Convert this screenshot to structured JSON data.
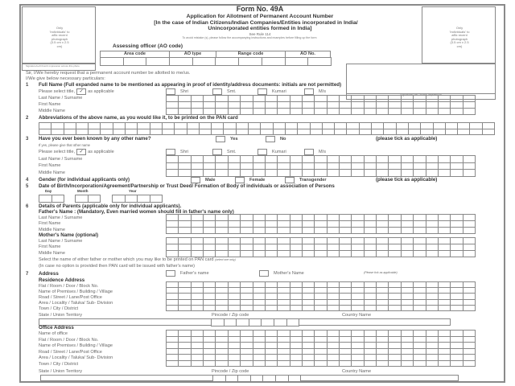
{
  "header": {
    "form_no": "Form No. 49A",
    "title": "Application for Allotment of Permanent Account Number",
    "subtitle1": "[In the case of Indian Citizens/Indian Companies/Entities incorporated in India/",
    "subtitle2": "Unincorporated entities formed in India]",
    "rule": "See Rule 114",
    "note": "To avoid mistake (s), please follow the accompanying instructions and examples before filling up the form"
  },
  "photo_left": {
    "text": "Only 'Individuals' to affix recent photograph (3.5 cm x 2.5 cm)",
    "sign_caption": "Signature/Left thumb impression across this photo"
  },
  "photo_right": {
    "text": "Only 'Individuals' to affix recent photograph (3.5 cm x 2.5 cm)",
    "sign_caption": "Signature/Left Thumb Impression"
  },
  "ao": {
    "label": "Assessing officer (AO code)",
    "columns": [
      "Area code",
      "AO type",
      "Range code",
      "AO No."
    ]
  },
  "intro": {
    "line1": "Sir, I/We hereby request that a permanent account number be allotted to me/us.",
    "line2": "I/We give below necessary particulars:"
  },
  "title_select": {
    "label": "Please select title,",
    "tick": "✓",
    "suffix": "as applicable",
    "options": [
      "Shri",
      "Smt.",
      "Kumari",
      "M/s"
    ]
  },
  "name_fields": [
    "Last Name / Surname",
    "First Name",
    "Middle Name"
  ],
  "q1": {
    "num": "1",
    "text": "Full Name (Full expanded name to be mentioned as appearing in proof of identity/address documents: initials are not permitted)"
  },
  "q2": {
    "num": "2",
    "text": "Abbreviations of the above name, as you would like it, to be printed on the PAN card"
  },
  "q3": {
    "num": "3",
    "text": "Have you ever been known by any other name?",
    "yes": "Yes",
    "no": "No",
    "tick_note": "(please tick as applicable)",
    "if_yes": "If yes, please give that other name"
  },
  "q4": {
    "num": "4",
    "text": "Gender (for individual applicants only)",
    "options": [
      "Male",
      "Female",
      "Transgender"
    ],
    "tick_note": "(please tick as applicable)"
  },
  "q5": {
    "num": "5",
    "text": "Date of Birth/Incorporation/Agreement/Partnership or Trust Deed/ Formation of Body of individuals or association of Persons",
    "day": "Day",
    "month": "Month",
    "year": "Year"
  },
  "q6": {
    "num": "6",
    "text": "Details of Parents (applicable only for individual applicants).",
    "father": "Father's Name : (Mandatory, Even married women should fill in father's name only)",
    "mother": "Mother's Name (optional)",
    "select": "Select the name of either father or mother which you may like to be printed on PAN card",
    "select_note": "(select one only)",
    "in_case": "(In case no option is provided then PAN card will be issued with father's name)",
    "father_opt": "Father's name",
    "mother_opt": "Mother's Name",
    "opt_note": "(Please tick as applicable)"
  },
  "q7": {
    "num": "7",
    "text": "Address",
    "residence": "Residence Address",
    "office": "Office Address",
    "office_name": "Name of office",
    "address_fields": [
      "Flat / Room / Door / Block No.",
      "Name of Premises / Building / Village",
      "Road / Street / Lane/Post Office",
      "Area / Locality / Taluka/ Sub- Division",
      "Town / City / District"
    ],
    "state": "State / Union Territory",
    "pincode": "Pincode / Zip code",
    "country": "Country Name"
  }
}
